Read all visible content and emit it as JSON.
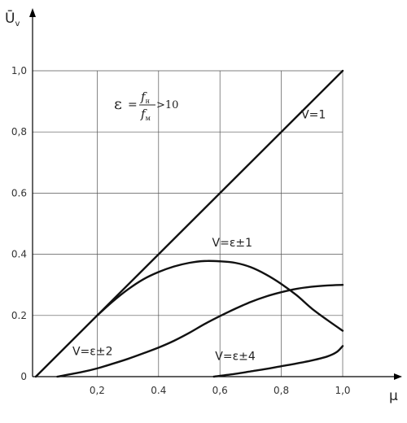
{
  "chart_data": {
    "type": "line",
    "ylabel": "Ū",
    "ylabel_sub": "v",
    "xlabel": "μ",
    "xlim": [
      0,
      1.0
    ],
    "ylim": [
      0,
      1.0
    ],
    "grid": true,
    "x_ticks": [
      {
        "value": 0.2,
        "label": "0,2"
      },
      {
        "value": 0.4,
        "label": "0.4"
      },
      {
        "value": 0.6,
        "label": "0,6"
      },
      {
        "value": 0.8,
        "label": "0,8"
      },
      {
        "value": 1.0,
        "label": "1,0"
      }
    ],
    "y_ticks": [
      {
        "value": 0,
        "label": "0"
      },
      {
        "value": 0.2,
        "label": "0.2"
      },
      {
        "value": 0.4,
        "label": "0.4"
      },
      {
        "value": 0.6,
        "label": "0.6"
      },
      {
        "value": 0.8,
        "label": "0,8"
      },
      {
        "value": 1.0,
        "label": "1,0"
      }
    ],
    "annotation": {
      "epsilon": "ε",
      "equals": "=",
      "numerator": "f",
      "numerator_sub": "н",
      "denominator": "f",
      "denominator_sub": "м",
      "condition": ">10"
    },
    "series": [
      {
        "name": "V=1",
        "x": [
          0,
          1.0
        ],
        "y": [
          0,
          1.0
        ]
      },
      {
        "name": "V=ε±1",
        "x": [
          0.2,
          0.25,
          0.3,
          0.35,
          0.4,
          0.45,
          0.5,
          0.55,
          0.6,
          0.65,
          0.7,
          0.75,
          0.8,
          0.85,
          0.9,
          0.95,
          1.0
        ],
        "y": [
          0.2,
          0.245,
          0.285,
          0.318,
          0.342,
          0.36,
          0.372,
          0.378,
          0.377,
          0.372,
          0.358,
          0.334,
          0.303,
          0.266,
          0.222,
          0.185,
          0.15
        ]
      },
      {
        "name": "V=ε±2",
        "x": [
          0.07,
          0.15,
          0.2,
          0.25,
          0.3,
          0.35,
          0.4,
          0.45,
          0.5,
          0.55,
          0.6,
          0.65,
          0.7,
          0.75,
          0.8,
          0.85,
          0.9,
          0.95,
          1.0
        ],
        "y": [
          0.0,
          0.015,
          0.027,
          0.042,
          0.058,
          0.076,
          0.095,
          0.117,
          0.143,
          0.172,
          0.198,
          0.222,
          0.244,
          0.262,
          0.276,
          0.287,
          0.294,
          0.298,
          0.3
        ]
      },
      {
        "name": "V=ε±4",
        "x": [
          0.58,
          0.65,
          0.7,
          0.75,
          0.8,
          0.85,
          0.9,
          0.95,
          0.98,
          1.0
        ],
        "y": [
          0.0,
          0.009,
          0.017,
          0.025,
          0.034,
          0.043,
          0.053,
          0.066,
          0.08,
          0.1
        ]
      }
    ],
    "series_label_positions": [
      {
        "series": 0,
        "x": 0.905,
        "y": 0.845
      },
      {
        "series": 1,
        "x": 0.64,
        "y": 0.425
      },
      {
        "series": 2,
        "x": 0.185,
        "y": 0.07
      },
      {
        "series": 3,
        "x": 0.65,
        "y": 0.055
      }
    ]
  }
}
